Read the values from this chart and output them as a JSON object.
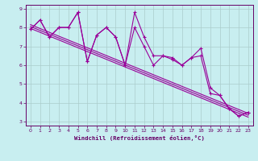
{
  "background_color": "#c8eef0",
  "line_color": "#990099",
  "grid_color": "#aacccc",
  "axis_color": "#660066",
  "text_color": "#660066",
  "xlim": [
    -0.5,
    23.5
  ],
  "ylim": [
    2.8,
    9.2
  ],
  "xticks": [
    0,
    1,
    2,
    3,
    4,
    5,
    6,
    7,
    8,
    9,
    10,
    11,
    12,
    13,
    14,
    15,
    16,
    17,
    18,
    19,
    20,
    21,
    22,
    23
  ],
  "yticks": [
    3,
    4,
    5,
    6,
    7,
    8,
    9
  ],
  "xlabel": "Windchill (Refroidissement éolien,°C)",
  "series_main": [
    7.9,
    8.4,
    7.5,
    8.0,
    8.0,
    8.8,
    6.2,
    7.6,
    8.0,
    7.5,
    6.0,
    8.8,
    7.5,
    6.5,
    6.5,
    6.4,
    6.0,
    6.4,
    6.9,
    4.8,
    4.4,
    3.7,
    3.3,
    3.5
  ],
  "series_b": [
    7.9,
    8.4,
    7.5,
    8.0,
    8.0,
    8.8,
    6.2,
    7.6,
    8.0,
    7.5,
    6.0,
    8.0,
    7.0,
    6.0,
    6.5,
    6.3,
    6.0,
    6.4,
    6.5,
    4.5,
    4.4,
    3.7,
    3.3,
    3.5
  ],
  "regression_lines": [
    [
      [
        0,
        8.15
      ],
      [
        23,
        3.45
      ]
    ],
    [
      [
        0,
        8.05
      ],
      [
        23,
        3.35
      ]
    ],
    [
      [
        0,
        7.95
      ],
      [
        23,
        3.25
      ]
    ]
  ]
}
